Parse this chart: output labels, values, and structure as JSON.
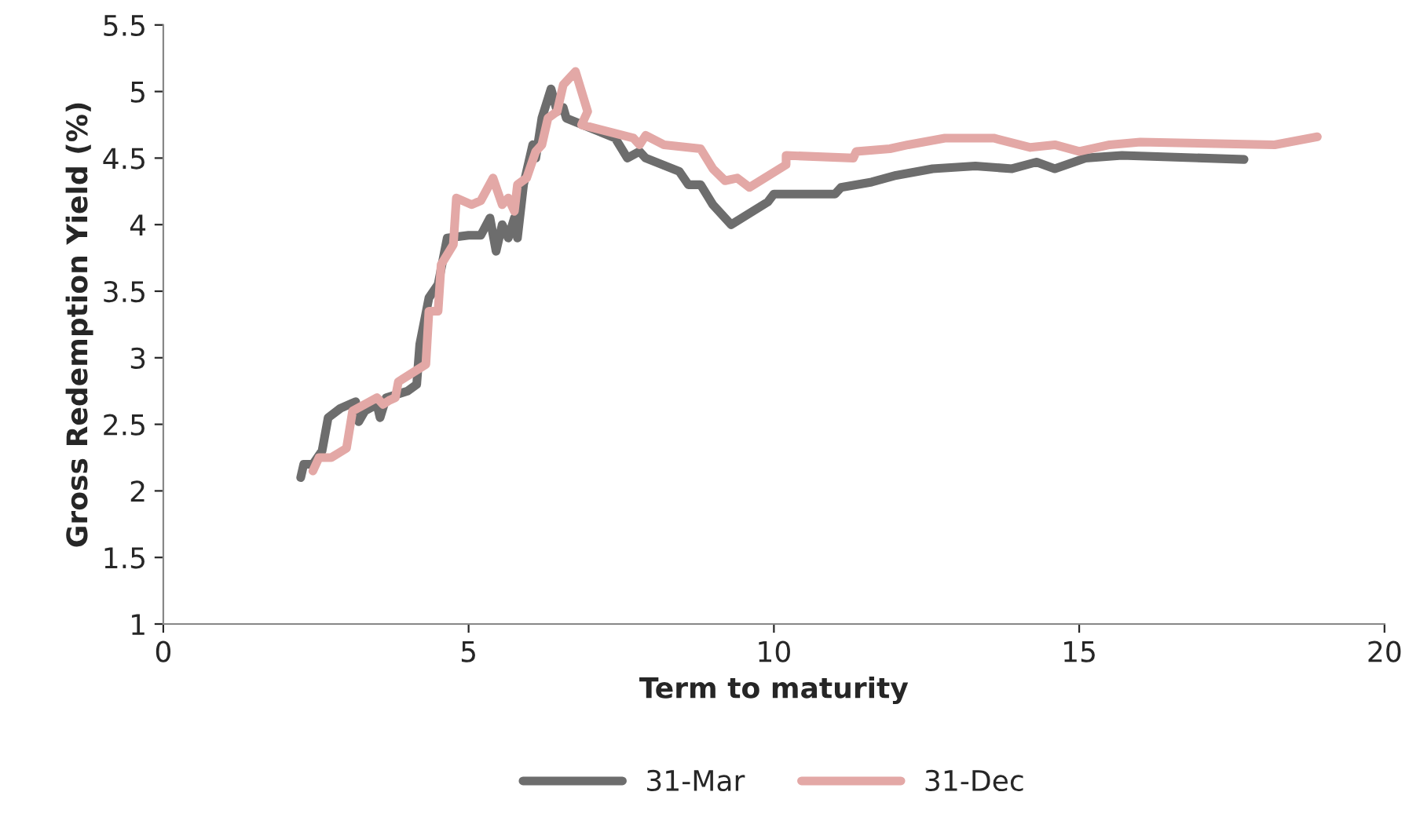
{
  "chart_data": {
    "type": "line",
    "xlabel": "Term to maturity",
    "ylabel": "Gross Redemption Yield (%)",
    "xlim": [
      0,
      20
    ],
    "xticks": [
      0,
      5,
      10,
      15,
      20
    ],
    "ylim": [
      1,
      5.5
    ],
    "yticks": [
      1,
      1.5,
      2,
      2.5,
      3,
      3.5,
      4,
      4.5,
      5,
      5.5
    ],
    "grid": false,
    "legend": "bottom",
    "marker": "none",
    "line_style": "solid",
    "series": [
      {
        "name": "31-Mar",
        "color": "#6d6d6d",
        "x": [
          2.25,
          2.3,
          2.45,
          2.6,
          2.7,
          2.9,
          3.15,
          3.2,
          3.3,
          3.5,
          3.55,
          3.65,
          4.0,
          4.15,
          4.2,
          4.35,
          4.5,
          4.65,
          5.0,
          5.2,
          5.35,
          5.45,
          5.55,
          5.65,
          5.75,
          5.8,
          5.9,
          6.05,
          6.1,
          6.2,
          6.35,
          6.45,
          6.55,
          6.6,
          7.4,
          7.6,
          7.8,
          7.9,
          8.45,
          8.6,
          8.8,
          9.0,
          9.3,
          9.9,
          10.0,
          11.0,
          11.1,
          11.6,
          12.0,
          12.6,
          13.3,
          13.9,
          14.3,
          14.6,
          15.1,
          15.7,
          17.7
        ],
        "values": [
          2.1,
          2.2,
          2.2,
          2.3,
          2.55,
          2.62,
          2.67,
          2.52,
          2.6,
          2.65,
          2.55,
          2.7,
          2.75,
          2.8,
          3.1,
          3.45,
          3.55,
          3.9,
          3.92,
          3.92,
          4.05,
          3.8,
          4.0,
          3.9,
          4.05,
          3.9,
          4.3,
          4.6,
          4.5,
          4.8,
          5.02,
          4.85,
          4.88,
          4.8,
          4.65,
          4.5,
          4.55,
          4.5,
          4.4,
          4.3,
          4.3,
          4.15,
          4.0,
          4.17,
          4.23,
          4.23,
          4.28,
          4.32,
          4.37,
          4.42,
          4.44,
          4.42,
          4.47,
          4.42,
          4.5,
          4.52,
          4.49
        ]
      },
      {
        "name": "31-Dec",
        "color": "#e3a8a6",
        "x": [
          2.45,
          2.55,
          2.75,
          3.0,
          3.1,
          3.3,
          3.5,
          3.6,
          3.7,
          3.8,
          3.85,
          4.3,
          4.35,
          4.5,
          4.55,
          4.75,
          4.8,
          5.05,
          5.2,
          5.4,
          5.55,
          5.65,
          5.75,
          5.8,
          5.95,
          6.1,
          6.2,
          6.3,
          6.45,
          6.55,
          6.75,
          6.95,
          6.85,
          7.7,
          7.8,
          7.9,
          8.2,
          8.8,
          9.0,
          9.2,
          9.4,
          9.6,
          10.2,
          10.2,
          11.3,
          11.35,
          11.9,
          12.2,
          12.8,
          13.6,
          14.2,
          14.6,
          15.0,
          15.5,
          16.0,
          18.2,
          18.9
        ],
        "values": [
          2.15,
          2.25,
          2.25,
          2.32,
          2.6,
          2.65,
          2.7,
          2.65,
          2.68,
          2.7,
          2.82,
          2.95,
          3.35,
          3.35,
          3.7,
          3.85,
          4.2,
          4.15,
          4.18,
          4.35,
          4.15,
          4.2,
          4.1,
          4.3,
          4.35,
          4.55,
          4.6,
          4.8,
          4.85,
          5.05,
          5.15,
          4.85,
          4.75,
          4.65,
          4.6,
          4.67,
          4.6,
          4.57,
          4.42,
          4.33,
          4.35,
          4.28,
          4.45,
          4.52,
          4.5,
          4.55,
          4.57,
          4.6,
          4.65,
          4.65,
          4.58,
          4.6,
          4.55,
          4.6,
          4.62,
          4.6,
          4.66
        ]
      }
    ]
  }
}
